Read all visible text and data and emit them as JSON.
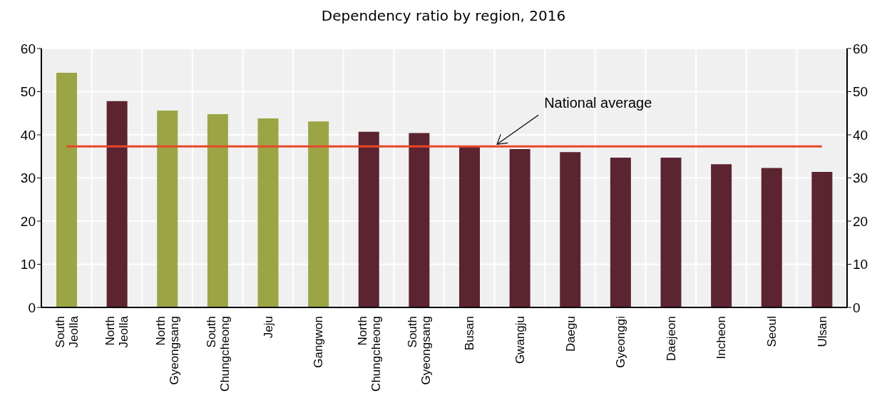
{
  "chart_data": {
    "type": "bar",
    "title": "Dependency ratio by region, 2016",
    "categories": [
      "South Jeolla",
      "North Jeolla",
      "North Gyeongsang",
      "South Chungcheong",
      "Jeju",
      "Gangwon",
      "North Chungcheong",
      "South Gyeongsang",
      "Busan",
      "Gwangju",
      "Daegu",
      "Gyeonggi",
      "Daejeon",
      "Incheon",
      "Seoul",
      "Ulsan"
    ],
    "values": [
      54.4,
      47.8,
      45.6,
      44.8,
      43.8,
      43.1,
      40.7,
      40.4,
      37.5,
      36.7,
      36.0,
      34.7,
      34.7,
      33.2,
      32.3,
      31.4
    ],
    "colors": [
      "#9ca545",
      "#5c2430",
      "#9ca545",
      "#9ca545",
      "#9ca545",
      "#9ca545",
      "#5c2430",
      "#5c2430",
      "#5c2430",
      "#5c2430",
      "#5c2430",
      "#5c2430",
      "#5c2430",
      "#5c2430",
      "#5c2430",
      "#5c2430"
    ],
    "ylim": [
      0,
      60
    ],
    "yticks": [
      0,
      10,
      20,
      30,
      40,
      50,
      60
    ],
    "y2lim": [
      0,
      60
    ],
    "y2ticks": [
      0,
      10,
      20,
      30,
      40,
      50,
      60
    ],
    "ref_lines": [
      {
        "axis": "y",
        "value": 37.3,
        "label": "National average",
        "color": "#e8472a"
      }
    ],
    "grid": true
  }
}
